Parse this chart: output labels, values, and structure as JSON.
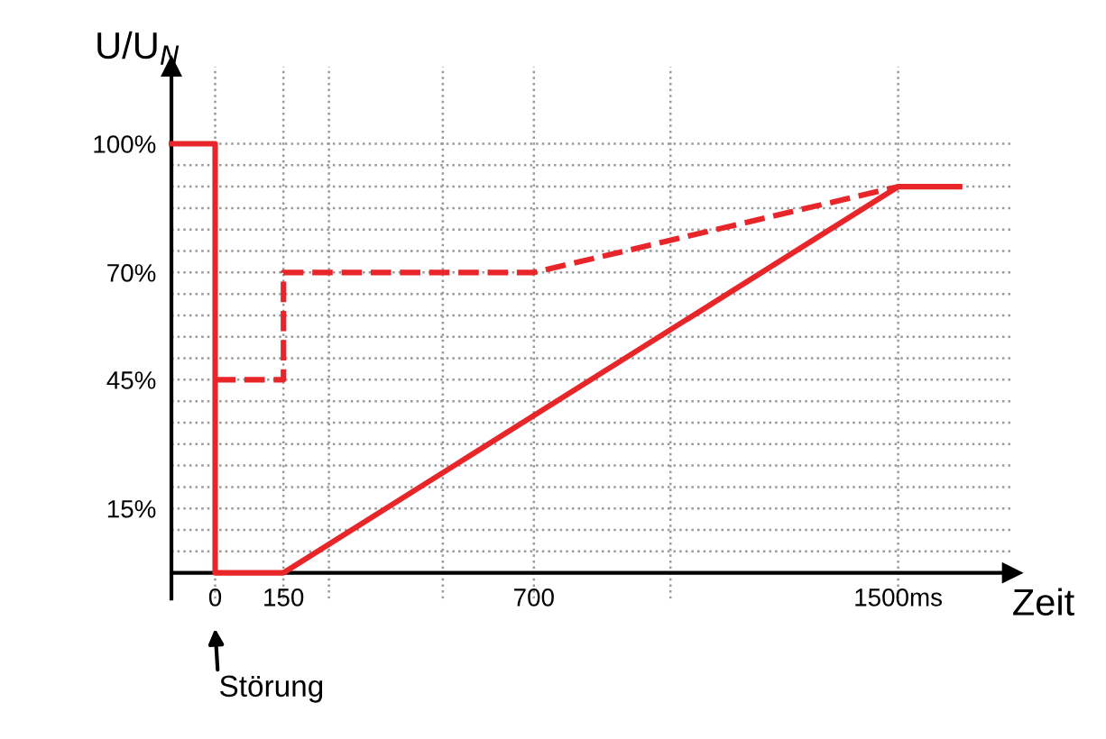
{
  "chart_data": {
    "type": "line",
    "xlabel": "Zeit",
    "ylabel": "U/U$_{N}$",
    "xlim": [
      -96,
      1750
    ],
    "ylim": [
      -6,
      118
    ],
    "xticks": [
      0,
      150,
      {
        "value": 250,
        "label": null
      },
      {
        "value": 500,
        "label": null
      },
      700,
      {
        "value": 1000,
        "label": null
      },
      {
        "value": 1500,
        "label": "1500ms"
      }
    ],
    "yticks": [
      {
        "value": 0,
        "label": null
      },
      {
        "value": 5,
        "label": null
      },
      {
        "value": 10,
        "label": null
      },
      {
        "value": 15,
        "label": "15%"
      },
      {
        "value": 20,
        "label": null
      },
      {
        "value": 25,
        "label": null
      },
      {
        "value": 30,
        "label": null
      },
      {
        "value": 35,
        "label": null
      },
      {
        "value": 40,
        "label": null
      },
      {
        "value": 45,
        "label": "45%"
      },
      {
        "value": 50,
        "label": null
      },
      {
        "value": 55,
        "label": null
      },
      {
        "value": 60,
        "label": null
      },
      {
        "value": 65,
        "label": null
      },
      {
        "value": 70,
        "label": "70%"
      },
      {
        "value": 75,
        "label": null
      },
      {
        "value": 80,
        "label": null
      },
      {
        "value": 85,
        "label": null
      },
      {
        "value": 90,
        "label": null
      },
      {
        "value": 95,
        "label": null
      },
      {
        "value": 100,
        "label": "100%"
      }
    ],
    "grid": true,
    "marker": "none",
    "series": [
      {
        "color": "#e8262a",
        "line_style": "solid",
        "x": [
          -96,
          0,
          0,
          150,
          1500,
          1635
        ],
        "values": [
          100,
          100,
          0,
          0,
          90,
          90
        ]
      },
      {
        "color": "#e8262a",
        "line_style": "dashed",
        "x": [
          0,
          150,
          150,
          700,
          1500
        ],
        "values": [
          45,
          45,
          70,
          70,
          90
        ]
      }
    ],
    "annotations": [
      "Störung"
    ]
  }
}
